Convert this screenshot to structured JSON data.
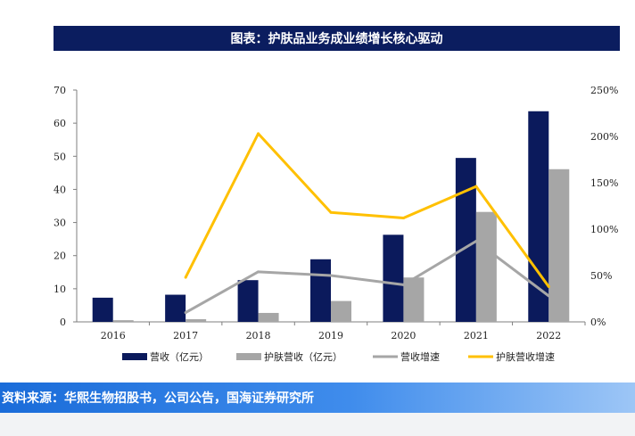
{
  "header": {
    "title": "图表：护肤品业务成业绩增长核心驱动"
  },
  "source": {
    "text": "资料来源：华熙生物招股书，公司公告，国海证券研究所"
  },
  "chart_data": {
    "type": "bar",
    "categories": [
      "2016",
      "2017",
      "2018",
      "2019",
      "2020",
      "2021",
      "2022"
    ],
    "y_left": {
      "ticks": [
        "0",
        "10",
        "20",
        "30",
        "40",
        "50",
        "60",
        "70"
      ],
      "ylim": [
        0,
        70
      ]
    },
    "y_right": {
      "ticks": [
        "0%",
        "50%",
        "100%",
        "150%",
        "200%",
        "250%"
      ],
      "ylim": [
        0,
        2.5
      ]
    },
    "series": [
      {
        "name": "营收（亿元）",
        "type": "bar",
        "axis": "left",
        "color": "#0b1a5c",
        "values": [
          7.3,
          8.2,
          12.6,
          18.9,
          26.3,
          49.5,
          63.6
        ]
      },
      {
        "name": "护肤营收（亿元）",
        "type": "bar",
        "axis": "left",
        "color": "#a6a6a6",
        "values": [
          0.5,
          0.8,
          2.7,
          6.3,
          13.4,
          33.2,
          46.1
        ]
      },
      {
        "name": "营收增速",
        "type": "line",
        "axis": "right",
        "color": "#a6a6a6",
        "values": [
          null,
          0.1,
          0.54,
          0.5,
          0.4,
          0.87,
          0.28
        ]
      },
      {
        "name": "护肤营收增速",
        "type": "line",
        "axis": "right",
        "color": "#ffc000",
        "values": [
          null,
          0.48,
          2.03,
          1.18,
          1.12,
          1.46,
          0.38
        ]
      }
    ],
    "legend": "bottom"
  }
}
